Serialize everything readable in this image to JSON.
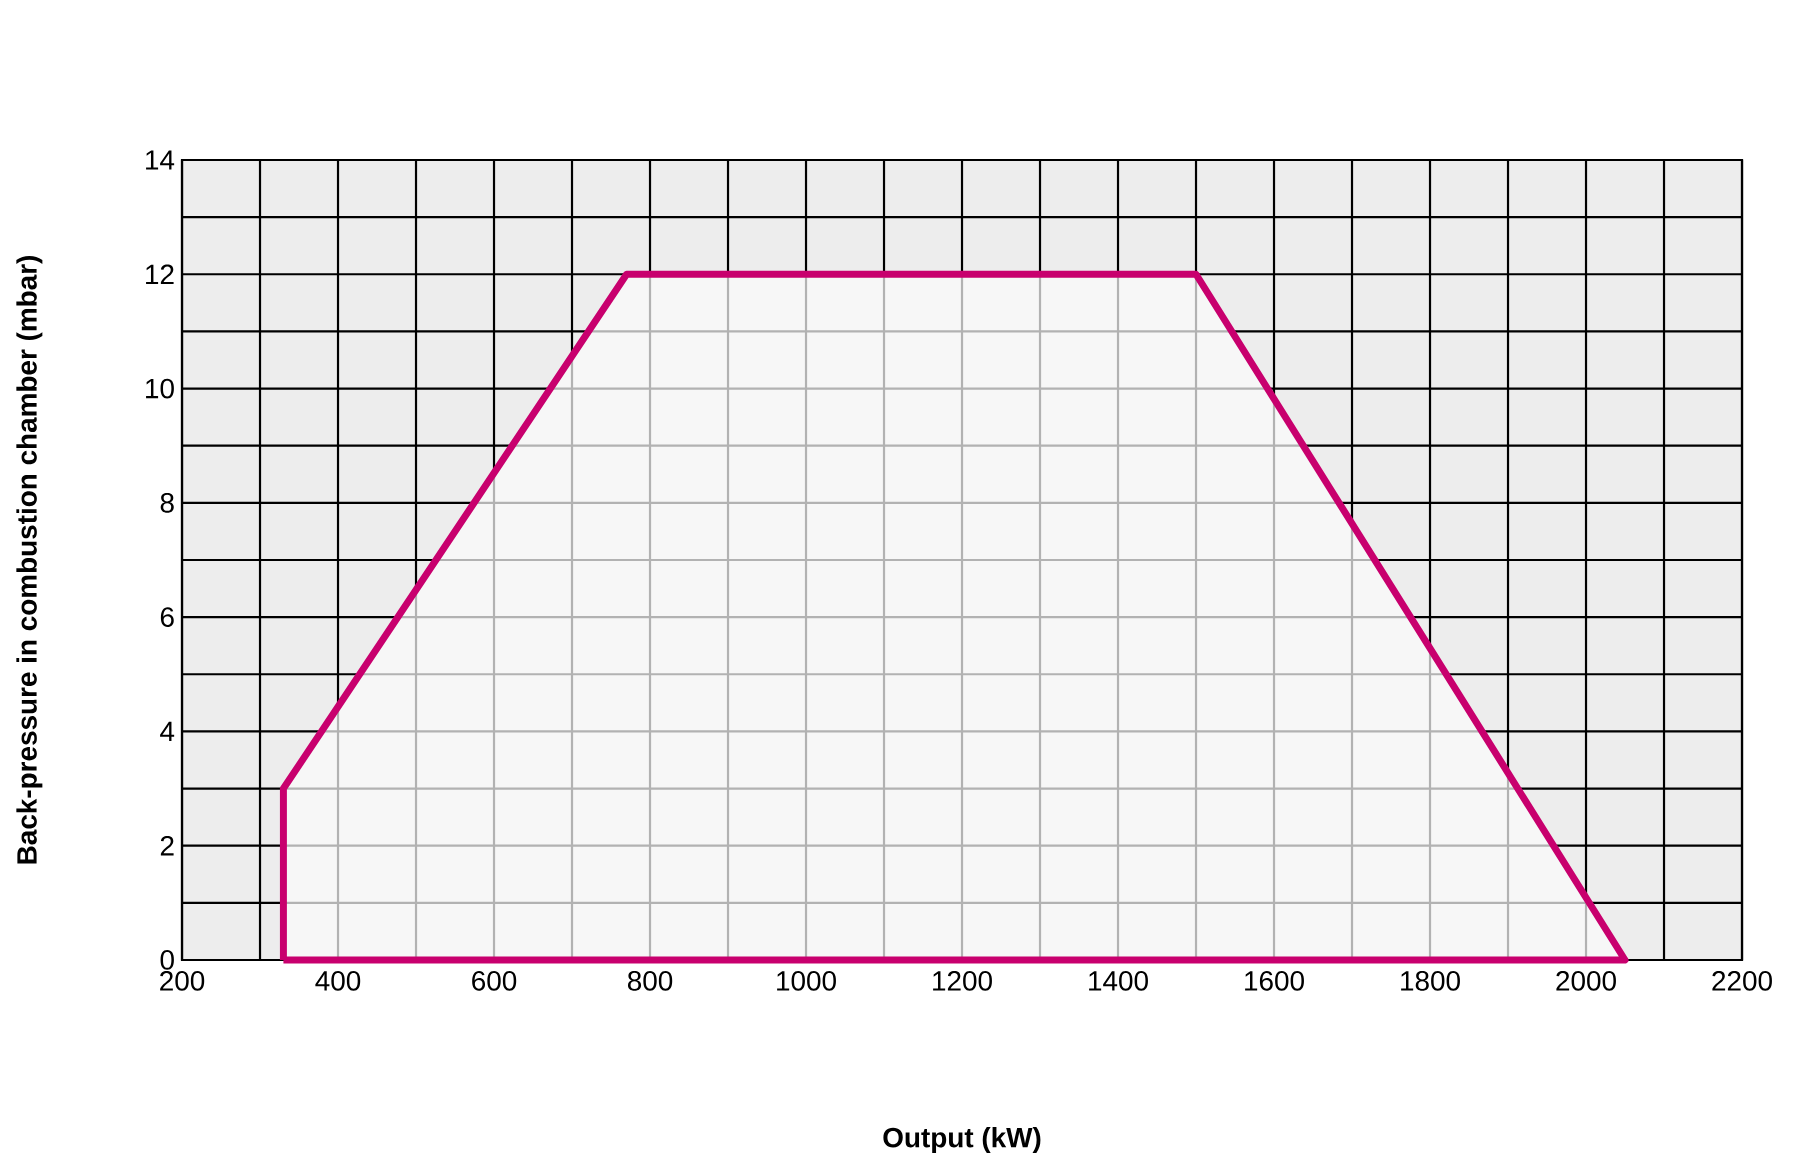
{
  "chart_data": {
    "type": "area",
    "xlabel": "Output (kW)",
    "ylabel": "Back-pressure in combustion chamber (mbar)",
    "x": [
      330,
      330,
      770,
      1500,
      2050,
      330
    ],
    "series": [
      {
        "color": "#c8006e",
        "values": [
          0,
          3,
          12,
          12,
          0,
          0
        ]
      }
    ],
    "xlim": [
      200,
      2200
    ],
    "xticks": [
      200,
      400,
      600,
      800,
      1000,
      1200,
      1400,
      1600,
      1800,
      2000,
      2200
    ],
    "ylim": [
      0,
      14
    ],
    "yticks": [
      0,
      2,
      4,
      6,
      8,
      10,
      12,
      14
    ],
    "grid": true
  }
}
